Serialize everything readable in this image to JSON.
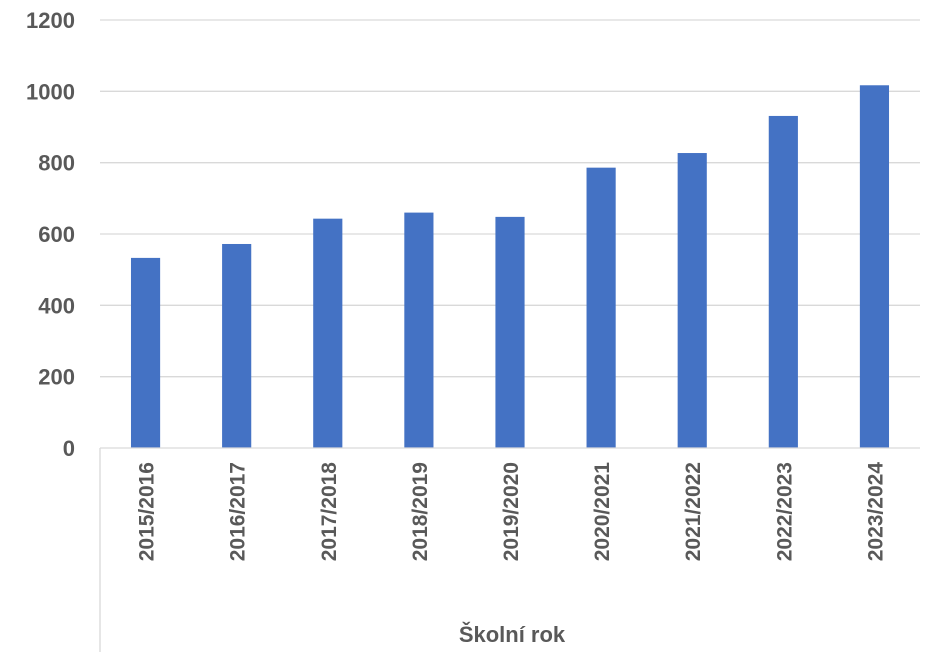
{
  "chart_data": {
    "type": "bar",
    "title": "",
    "xlabel": "Školní rok",
    "ylabel": "",
    "categories": [
      "2015/2016",
      "2016/2017",
      "2017/2018",
      "2018/2019",
      "2019/2020",
      "2020/2021",
      "2021/2022",
      "2022/2023",
      "2023/2024"
    ],
    "values": [
      533,
      572,
      643,
      660,
      648,
      786,
      827,
      931,
      1017
    ],
    "ylim": [
      0,
      1200
    ],
    "yticks": [
      "0",
      "200",
      "400",
      "600",
      "800",
      "1000",
      "1200"
    ],
    "grid": true,
    "legend": "none",
    "bar_color": "#4472C4",
    "grid_color": "#d9d9d9",
    "text_color": "#595959"
  }
}
